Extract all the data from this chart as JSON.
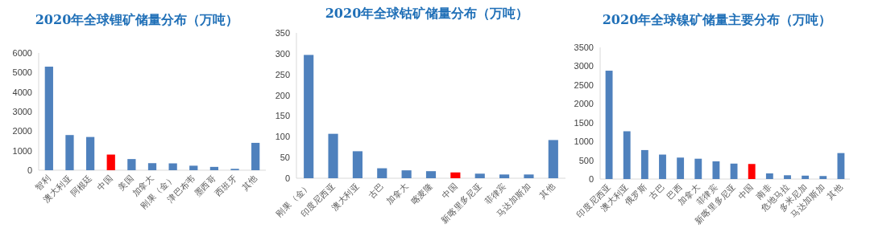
{
  "chart_data": [
    {
      "type": "bar",
      "title": "2020年全球锂矿储量分布（万吨）",
      "categories": [
        "智利",
        "澳大利亚",
        "阿根廷",
        "中国",
        "美国",
        "加拿大",
        "刚果（金）",
        "津巴布韦",
        "墨西哥",
        "西班牙",
        "其他"
      ],
      "values": [
        5300,
        1800,
        1700,
        800,
        570,
        360,
        350,
        230,
        170,
        70,
        1400
      ],
      "colors": [
        "#4f81bd",
        "#4f81bd",
        "#4f81bd",
        "#ff0000",
        "#4f81bd",
        "#4f81bd",
        "#4f81bd",
        "#4f81bd",
        "#4f81bd",
        "#4f81bd",
        "#4f81bd"
      ],
      "ylim": [
        0,
        6000
      ],
      "yticks": [
        0,
        1000,
        2000,
        3000,
        4000,
        5000,
        6000
      ]
    },
    {
      "type": "bar",
      "title": "2020年全球钴矿储量分布（万吨）",
      "categories": [
        "刚果（金）",
        "印度尼西亚",
        "澳大利亚",
        "古巴",
        "加拿大",
        "喀麦隆",
        "中国",
        "新喀里多尼亚",
        "菲律宾",
        "马达加斯加",
        "其他"
      ],
      "values": [
        297,
        107,
        65,
        24,
        19,
        17,
        14,
        11,
        9,
        9,
        92
      ],
      "colors": [
        "#4f81bd",
        "#4f81bd",
        "#4f81bd",
        "#4f81bd",
        "#4f81bd",
        "#4f81bd",
        "#ff0000",
        "#4f81bd",
        "#4f81bd",
        "#4f81bd",
        "#4f81bd"
      ],
      "ylim": [
        0,
        350
      ],
      "yticks": [
        0,
        50,
        100,
        150,
        200,
        250,
        300,
        350
      ]
    },
    {
      "type": "bar",
      "title": "2020年全球镍矿储量主要分布（万吨）",
      "categories": [
        "印度尼西亚",
        "澳大利亚",
        "俄罗斯",
        "古巴",
        "巴西",
        "加拿大",
        "菲律宾",
        "新喀里多尼亚",
        "中国",
        "南非",
        "危地马拉",
        "多米尼加",
        "马达加斯加",
        "其他"
      ],
      "values": [
        2880,
        1270,
        770,
        650,
        570,
        540,
        470,
        410,
        400,
        150,
        100,
        90,
        80,
        690
      ],
      "colors": [
        "#4f81bd",
        "#4f81bd",
        "#4f81bd",
        "#4f81bd",
        "#4f81bd",
        "#4f81bd",
        "#4f81bd",
        "#4f81bd",
        "#ff0000",
        "#4f81bd",
        "#4f81bd",
        "#4f81bd",
        "#4f81bd",
        "#4f81bd"
      ],
      "ylim": [
        0,
        3500
      ],
      "yticks": [
        0,
        500,
        1000,
        1500,
        2000,
        2500,
        3000,
        3500
      ]
    }
  ]
}
